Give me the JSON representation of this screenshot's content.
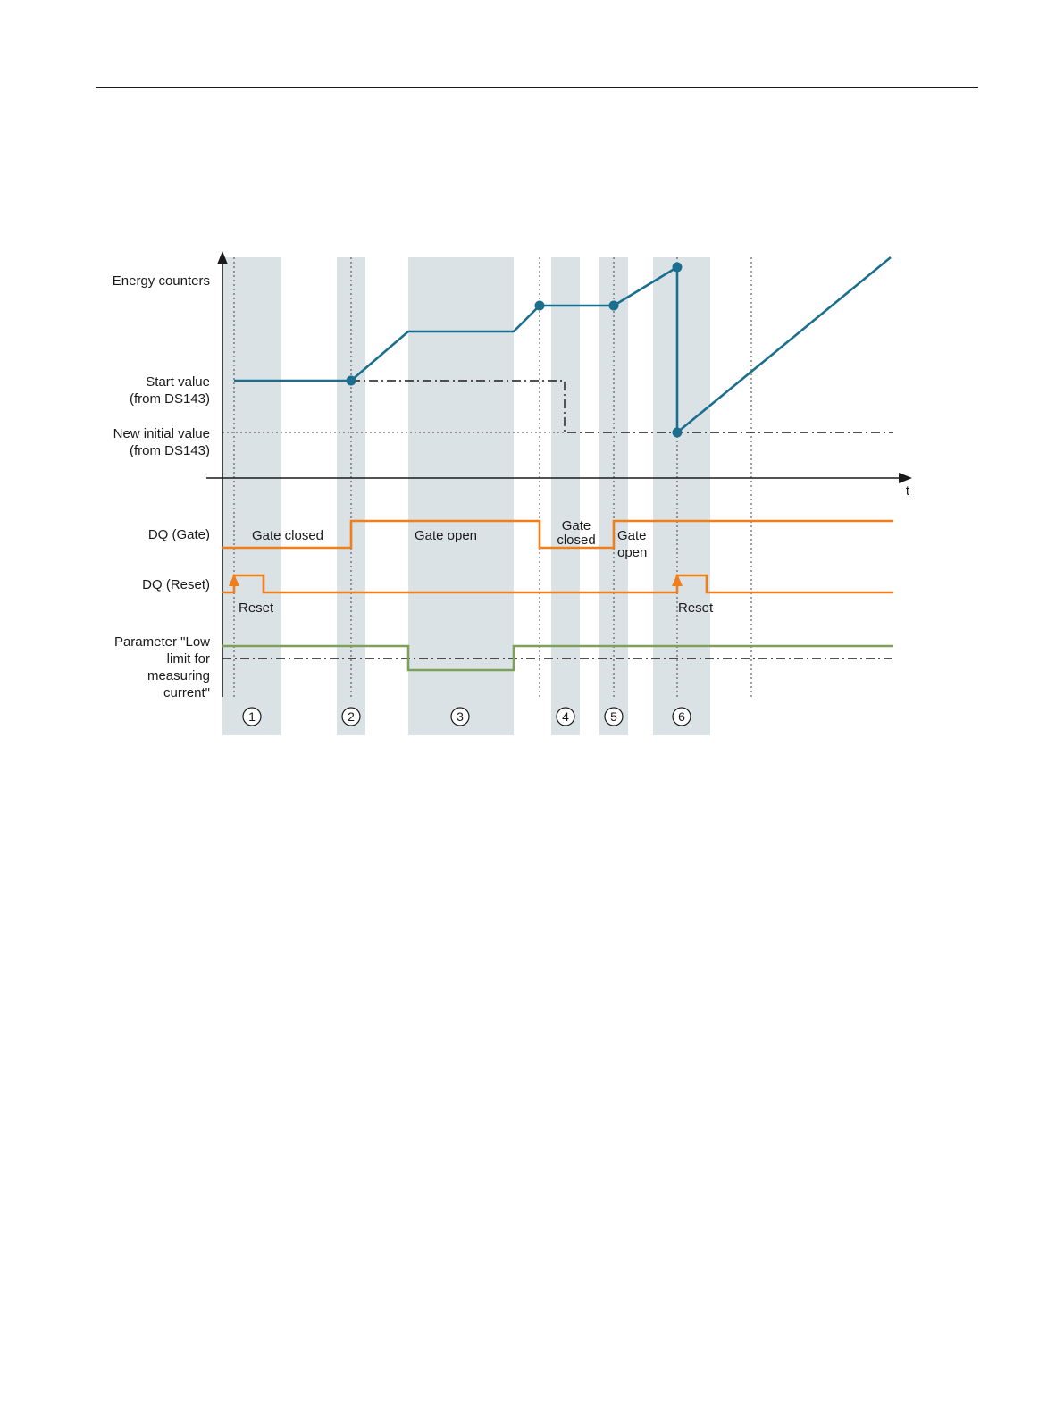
{
  "labels": {
    "energy_counters": "Energy counters",
    "start_value_1": "Start value",
    "start_value_2": "(from DS143)",
    "new_initial_1": "New initial value",
    "new_initial_2": "(from DS143)",
    "dq_gate": "DQ (Gate)",
    "dq_reset": "DQ (Reset)",
    "param_1": "Parameter \"Low",
    "param_2": "limit for",
    "param_3": "measuring",
    "param_4": "current\"",
    "t_axis": "t"
  },
  "annotations": {
    "gate_closed_1": "Gate closed",
    "gate_open_1": "Gate open",
    "gate_closed_2a": "Gate",
    "gate_closed_2b": "closed",
    "gate_open_2a": "Gate",
    "gate_open_2b": "open",
    "reset_1": "Reset",
    "reset_2": "Reset"
  },
  "markers": [
    "1",
    "2",
    "3",
    "4",
    "5",
    "6"
  ],
  "colors": {
    "energy": "#1b6f8e",
    "digital_output": "#ef7f1a",
    "parameter": "#7da05b",
    "band": "#dbe2e6"
  }
}
